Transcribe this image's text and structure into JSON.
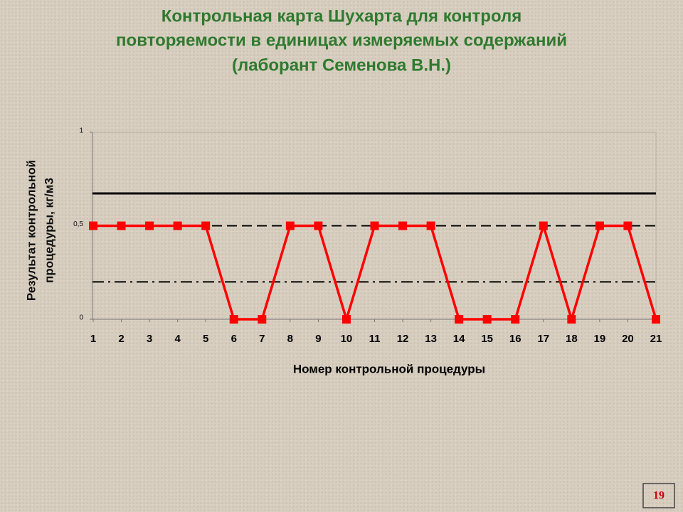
{
  "chart_data": {
    "type": "line",
    "title_lines": [
      "Контрольная карта Шухарта для контроля",
      "повторяемости в единицах измеряемых содержаний",
      "(лаборант Семенова В.Н.)"
    ],
    "x_label": "Номер контрольной процедуры",
    "y_label_lines": [
      "Результат контрольной",
      "процедуры, кг/м3"
    ],
    "x": [
      1,
      2,
      3,
      4,
      5,
      6,
      7,
      8,
      9,
      10,
      11,
      12,
      13,
      14,
      15,
      16,
      17,
      18,
      19,
      20,
      21
    ],
    "series": [
      {
        "color": "#ff0000",
        "values": [
          0.5,
          0.5,
          0.5,
          0.5,
          0.5,
          0,
          0,
          0.5,
          0.5,
          0,
          0.5,
          0.5,
          0.5,
          0,
          0,
          0,
          0.5,
          0,
          0.5,
          0.5,
          0
        ]
      }
    ],
    "xlim": [
      1,
      21
    ],
    "xticks": [
      1,
      2,
      3,
      4,
      5,
      6,
      7,
      8,
      9,
      10,
      11,
      12,
      13,
      14,
      15,
      16,
      17,
      18,
      19,
      20,
      21
    ],
    "ylim": [
      0,
      1
    ],
    "yticks": [
      0,
      {
        "value": 0.5,
        "label": "0,5"
      },
      1
    ],
    "reference_lines": [
      {
        "value": 0.673,
        "style": "solid",
        "color": "#000000"
      },
      {
        "value": 0.5,
        "style": "dashed",
        "color": "#000000"
      },
      {
        "value": 0.2,
        "style": "dashdot",
        "color": "#000000"
      }
    ],
    "page_number": 19
  }
}
